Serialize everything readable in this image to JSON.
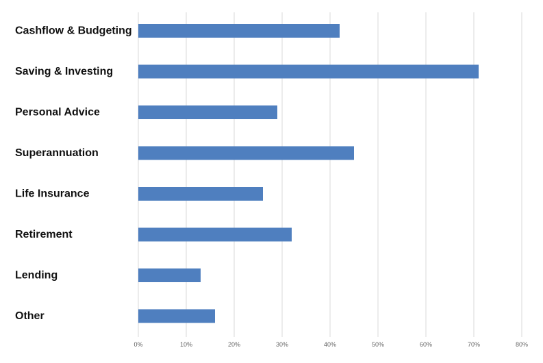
{
  "chart_data": {
    "type": "bar",
    "orientation": "horizontal",
    "categories": [
      "Cashflow & Budgeting",
      "Saving & Investing",
      "Personal Advice",
      "Superannuation",
      "Life Insurance",
      "Retirement",
      "Lending",
      "Other"
    ],
    "values": [
      0.42,
      0.71,
      0.29,
      0.45,
      0.26,
      0.32,
      0.13,
      0.16
    ],
    "xlim": [
      0,
      0.8
    ],
    "x_ticks": [
      0,
      0.1,
      0.2,
      0.3,
      0.4,
      0.5,
      0.6,
      0.7,
      0.8
    ],
    "x_tick_labels": [
      "0%",
      "10%",
      "20%",
      "30%",
      "40%",
      "50%",
      "60%",
      "70%",
      "80%"
    ],
    "title": "",
    "xlabel": "",
    "ylabel": "",
    "grid": "vertical",
    "bar_color": "#4f7fbf",
    "grid_color": "#d9d9d9"
  }
}
